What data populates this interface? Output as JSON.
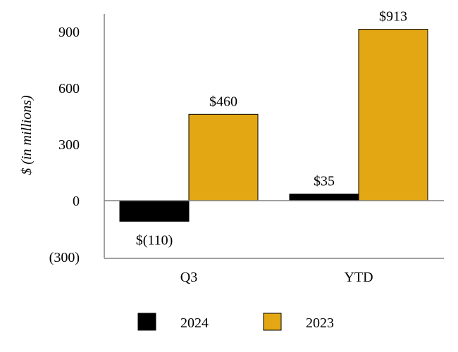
{
  "chart_data": {
    "type": "bar",
    "categories": [
      "Q3",
      "YTD"
    ],
    "series": [
      {
        "name": "2024",
        "color": "#000000",
        "values": [
          -110,
          35
        ],
        "labels": [
          "$(110)",
          "$35"
        ]
      },
      {
        "name": "2023",
        "color": "#E3A714",
        "values": [
          460,
          913
        ],
        "labels": [
          "$460",
          "$913"
        ]
      }
    ],
    "ylabel": "$ (in millions)",
    "xlabel": "",
    "ylim": [
      -300,
      1000
    ],
    "yticks": [
      -300,
      0,
      300,
      600,
      900
    ],
    "ytick_labels": [
      "(300)",
      "0",
      "300",
      "600",
      "900"
    ],
    "legend_position": "bottom",
    "grid": false
  }
}
